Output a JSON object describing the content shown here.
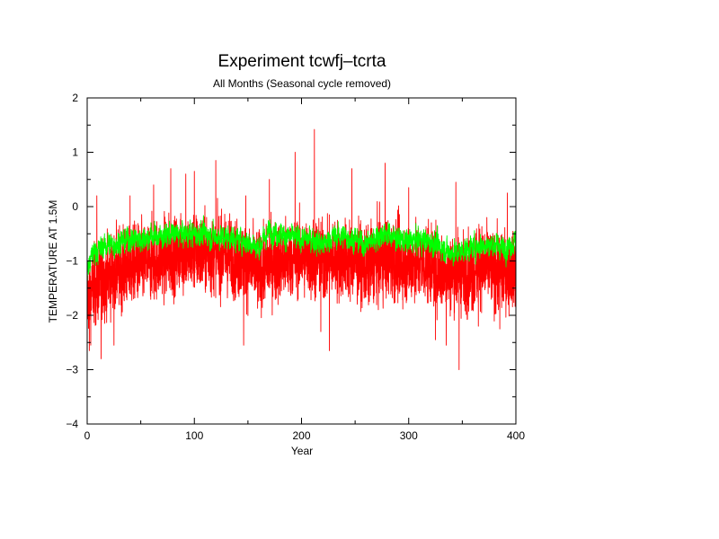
{
  "chart_data": {
    "type": "line",
    "title": "Experiment tcwfj–tcrta",
    "subtitle": "All Months (Seasonal cycle removed)",
    "xlabel": "Year",
    "ylabel": "TEMPERATURE AT 1.5M",
    "xlim": [
      0,
      400
    ],
    "ylim": [
      -4,
      2
    ],
    "xticks": [
      0,
      100,
      200,
      300,
      400
    ],
    "yticks": [
      -4,
      -3,
      -2,
      -1,
      0,
      1,
      2
    ],
    "xtick_labels": [
      "0",
      "100",
      "200",
      "300",
      "400"
    ],
    "ytick_labels": [
      "−4",
      "−3",
      "−2",
      "−1",
      "0",
      "1",
      "2"
    ],
    "grid": false,
    "series": [
      {
        "color": "#ff0000",
        "kind": "monthly",
        "x": [
          0,
          5,
          10,
          15,
          20,
          25,
          30,
          40,
          50,
          60,
          70,
          80,
          90,
          100,
          110,
          120,
          130,
          140,
          150,
          160,
          170,
          180,
          190,
          200,
          210,
          220,
          230,
          240,
          250,
          260,
          270,
          280,
          290,
          300,
          310,
          320,
          330,
          340,
          350,
          360,
          370,
          380,
          390,
          400
        ],
        "mean": [
          -1.7,
          -1.5,
          -1.4,
          -1.3,
          -1.3,
          -1.2,
          -1.15,
          -1.1,
          -1.05,
          -1.0,
          -0.95,
          -0.9,
          -0.85,
          -0.85,
          -0.85,
          -0.85,
          -0.9,
          -0.95,
          -1.05,
          -1.2,
          -1.05,
          -1.0,
          -0.95,
          -0.9,
          -0.95,
          -1.0,
          -0.95,
          -0.95,
          -1.0,
          -1.1,
          -1.0,
          -0.95,
          -1.0,
          -1.05,
          -1.0,
          -1.05,
          -1.15,
          -1.2,
          -1.2,
          -1.15,
          -1.1,
          -1.15,
          -1.2,
          -1.15
        ],
        "peaks": [
          {
            "x": 2,
            "y": -2.65
          },
          {
            "x": 9,
            "y": 0.2
          },
          {
            "x": 13,
            "y": -2.8
          },
          {
            "x": 25,
            "y": -2.55
          },
          {
            "x": 40,
            "y": 0.2
          },
          {
            "x": 62,
            "y": 0.4
          },
          {
            "x": 78,
            "y": 0.7
          },
          {
            "x": 92,
            "y": 0.6
          },
          {
            "x": 100,
            "y": 0.65
          },
          {
            "x": 120,
            "y": 0.85
          },
          {
            "x": 146,
            "y": -2.55
          },
          {
            "x": 148,
            "y": 0.2
          },
          {
            "x": 170,
            "y": 0.5
          },
          {
            "x": 194,
            "y": 1.0
          },
          {
            "x": 212,
            "y": 1.42
          },
          {
            "x": 218,
            "y": -2.3
          },
          {
            "x": 226,
            "y": -2.65
          },
          {
            "x": 247,
            "y": 0.7
          },
          {
            "x": 278,
            "y": 0.8
          },
          {
            "x": 300,
            "y": 0.35
          },
          {
            "x": 325,
            "y": -2.45
          },
          {
            "x": 335,
            "y": -2.55
          },
          {
            "x": 344,
            "y": 0.45
          },
          {
            "x": 347,
            "y": -3.0
          },
          {
            "x": 365,
            "y": -2.2
          },
          {
            "x": 385,
            "y": -2.25
          },
          {
            "x": 392,
            "y": 0.25
          }
        ],
        "band": 0.55
      },
      {
        "color": "#00ff00",
        "kind": "smoothed",
        "x": [
          0,
          5,
          10,
          15,
          20,
          25,
          30,
          40,
          50,
          60,
          70,
          80,
          90,
          100,
          110,
          120,
          130,
          140,
          150,
          160,
          170,
          180,
          190,
          200,
          210,
          220,
          230,
          240,
          250,
          260,
          270,
          280,
          290,
          300,
          310,
          320,
          330,
          340,
          350,
          360,
          370,
          380,
          390,
          400
        ],
        "mean": [
          -1.2,
          -0.85,
          -0.8,
          -0.75,
          -0.7,
          -0.7,
          -0.65,
          -0.6,
          -0.6,
          -0.55,
          -0.55,
          -0.5,
          -0.5,
          -0.5,
          -0.5,
          -0.55,
          -0.55,
          -0.6,
          -0.65,
          -0.75,
          -0.45,
          -0.5,
          -0.55,
          -0.6,
          -0.6,
          -0.7,
          -0.55,
          -0.55,
          -0.6,
          -0.7,
          -0.55,
          -0.5,
          -0.6,
          -0.65,
          -0.6,
          -0.65,
          -0.75,
          -0.85,
          -0.8,
          -0.75,
          -0.7,
          -0.7,
          -0.75,
          -0.65
        ],
        "band": 0.22
      }
    ]
  }
}
